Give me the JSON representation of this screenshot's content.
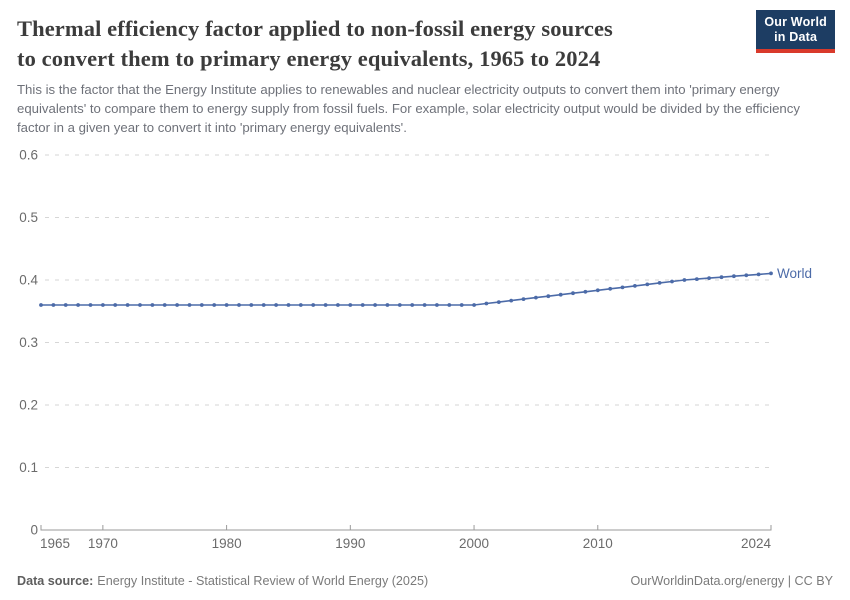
{
  "header": {
    "title_line1": "Thermal efficiency factor applied to non-fossil energy sources",
    "title_line2": "to convert them to primary energy equivalents, 1965 to 2024",
    "subtitle": "This is the factor that the Energy Institute applies to renewables and nuclear electricity outputs to convert them into 'primary energy equivalents' to compare them to energy supply from fossil fuels. For example, solar electricity output would be divided by the efficiency factor in a given year to convert it into 'primary energy equivalents'.",
    "logo": {
      "line1": "Our World",
      "line2": "in Data"
    }
  },
  "footer": {
    "data_source_label": "Data source:",
    "data_source_value": "Energy Institute - Statistical Review of World Energy (2025)",
    "link": "OurWorldinData.org/energy | CC BY"
  },
  "colors": {
    "accent": "#4C6BA8",
    "logo_navy": "#1D3D63",
    "logo_red": "#D93A2B",
    "grid": "#D6D6D6",
    "axis": "#9A9A9A",
    "tick_label": "#6B6B6B"
  },
  "chart_data": {
    "type": "line",
    "title": "Thermal efficiency factor applied to non-fossil energy sources to convert them to primary energy equivalents, 1965 to 2024",
    "xlabel": "",
    "ylabel": "",
    "xlim": [
      1965,
      2024
    ],
    "ylim": [
      0,
      0.6
    ],
    "x_ticks": [
      1965,
      1970,
      1980,
      1990,
      2000,
      2010,
      2024
    ],
    "y_ticks": [
      0,
      0.1,
      0.2,
      0.3,
      0.4,
      0.5,
      0.6
    ],
    "grid": "horizontal-dashed",
    "legend_position": "end-of-line-label",
    "x": [
      1965,
      1966,
      1967,
      1968,
      1969,
      1970,
      1971,
      1972,
      1973,
      1974,
      1975,
      1976,
      1977,
      1978,
      1979,
      1980,
      1981,
      1982,
      1983,
      1984,
      1985,
      1986,
      1987,
      1988,
      1989,
      1990,
      1991,
      1992,
      1993,
      1994,
      1995,
      1996,
      1997,
      1998,
      1999,
      2000,
      2001,
      2002,
      2003,
      2004,
      2005,
      2006,
      2007,
      2008,
      2009,
      2010,
      2011,
      2012,
      2013,
      2014,
      2015,
      2016,
      2017,
      2018,
      2019,
      2020,
      2021,
      2022,
      2023,
      2024
    ],
    "series": [
      {
        "name": "World",
        "color": "#4C6BA8",
        "values": [
          0.36,
          0.36,
          0.36,
          0.36,
          0.36,
          0.36,
          0.36,
          0.36,
          0.36,
          0.36,
          0.36,
          0.36,
          0.36,
          0.36,
          0.36,
          0.36,
          0.36,
          0.36,
          0.36,
          0.36,
          0.36,
          0.36,
          0.36,
          0.36,
          0.36,
          0.36,
          0.36,
          0.36,
          0.36,
          0.36,
          0.36,
          0.36,
          0.36,
          0.36,
          0.36,
          0.36,
          0.3624,
          0.3647,
          0.3671,
          0.3694,
          0.3718,
          0.3741,
          0.3765,
          0.3788,
          0.3812,
          0.3835,
          0.3859,
          0.3882,
          0.3906,
          0.3929,
          0.3953,
          0.3976,
          0.4,
          0.4015,
          0.403,
          0.4045,
          0.406,
          0.4075,
          0.409,
          0.4105
        ]
      }
    ]
  }
}
